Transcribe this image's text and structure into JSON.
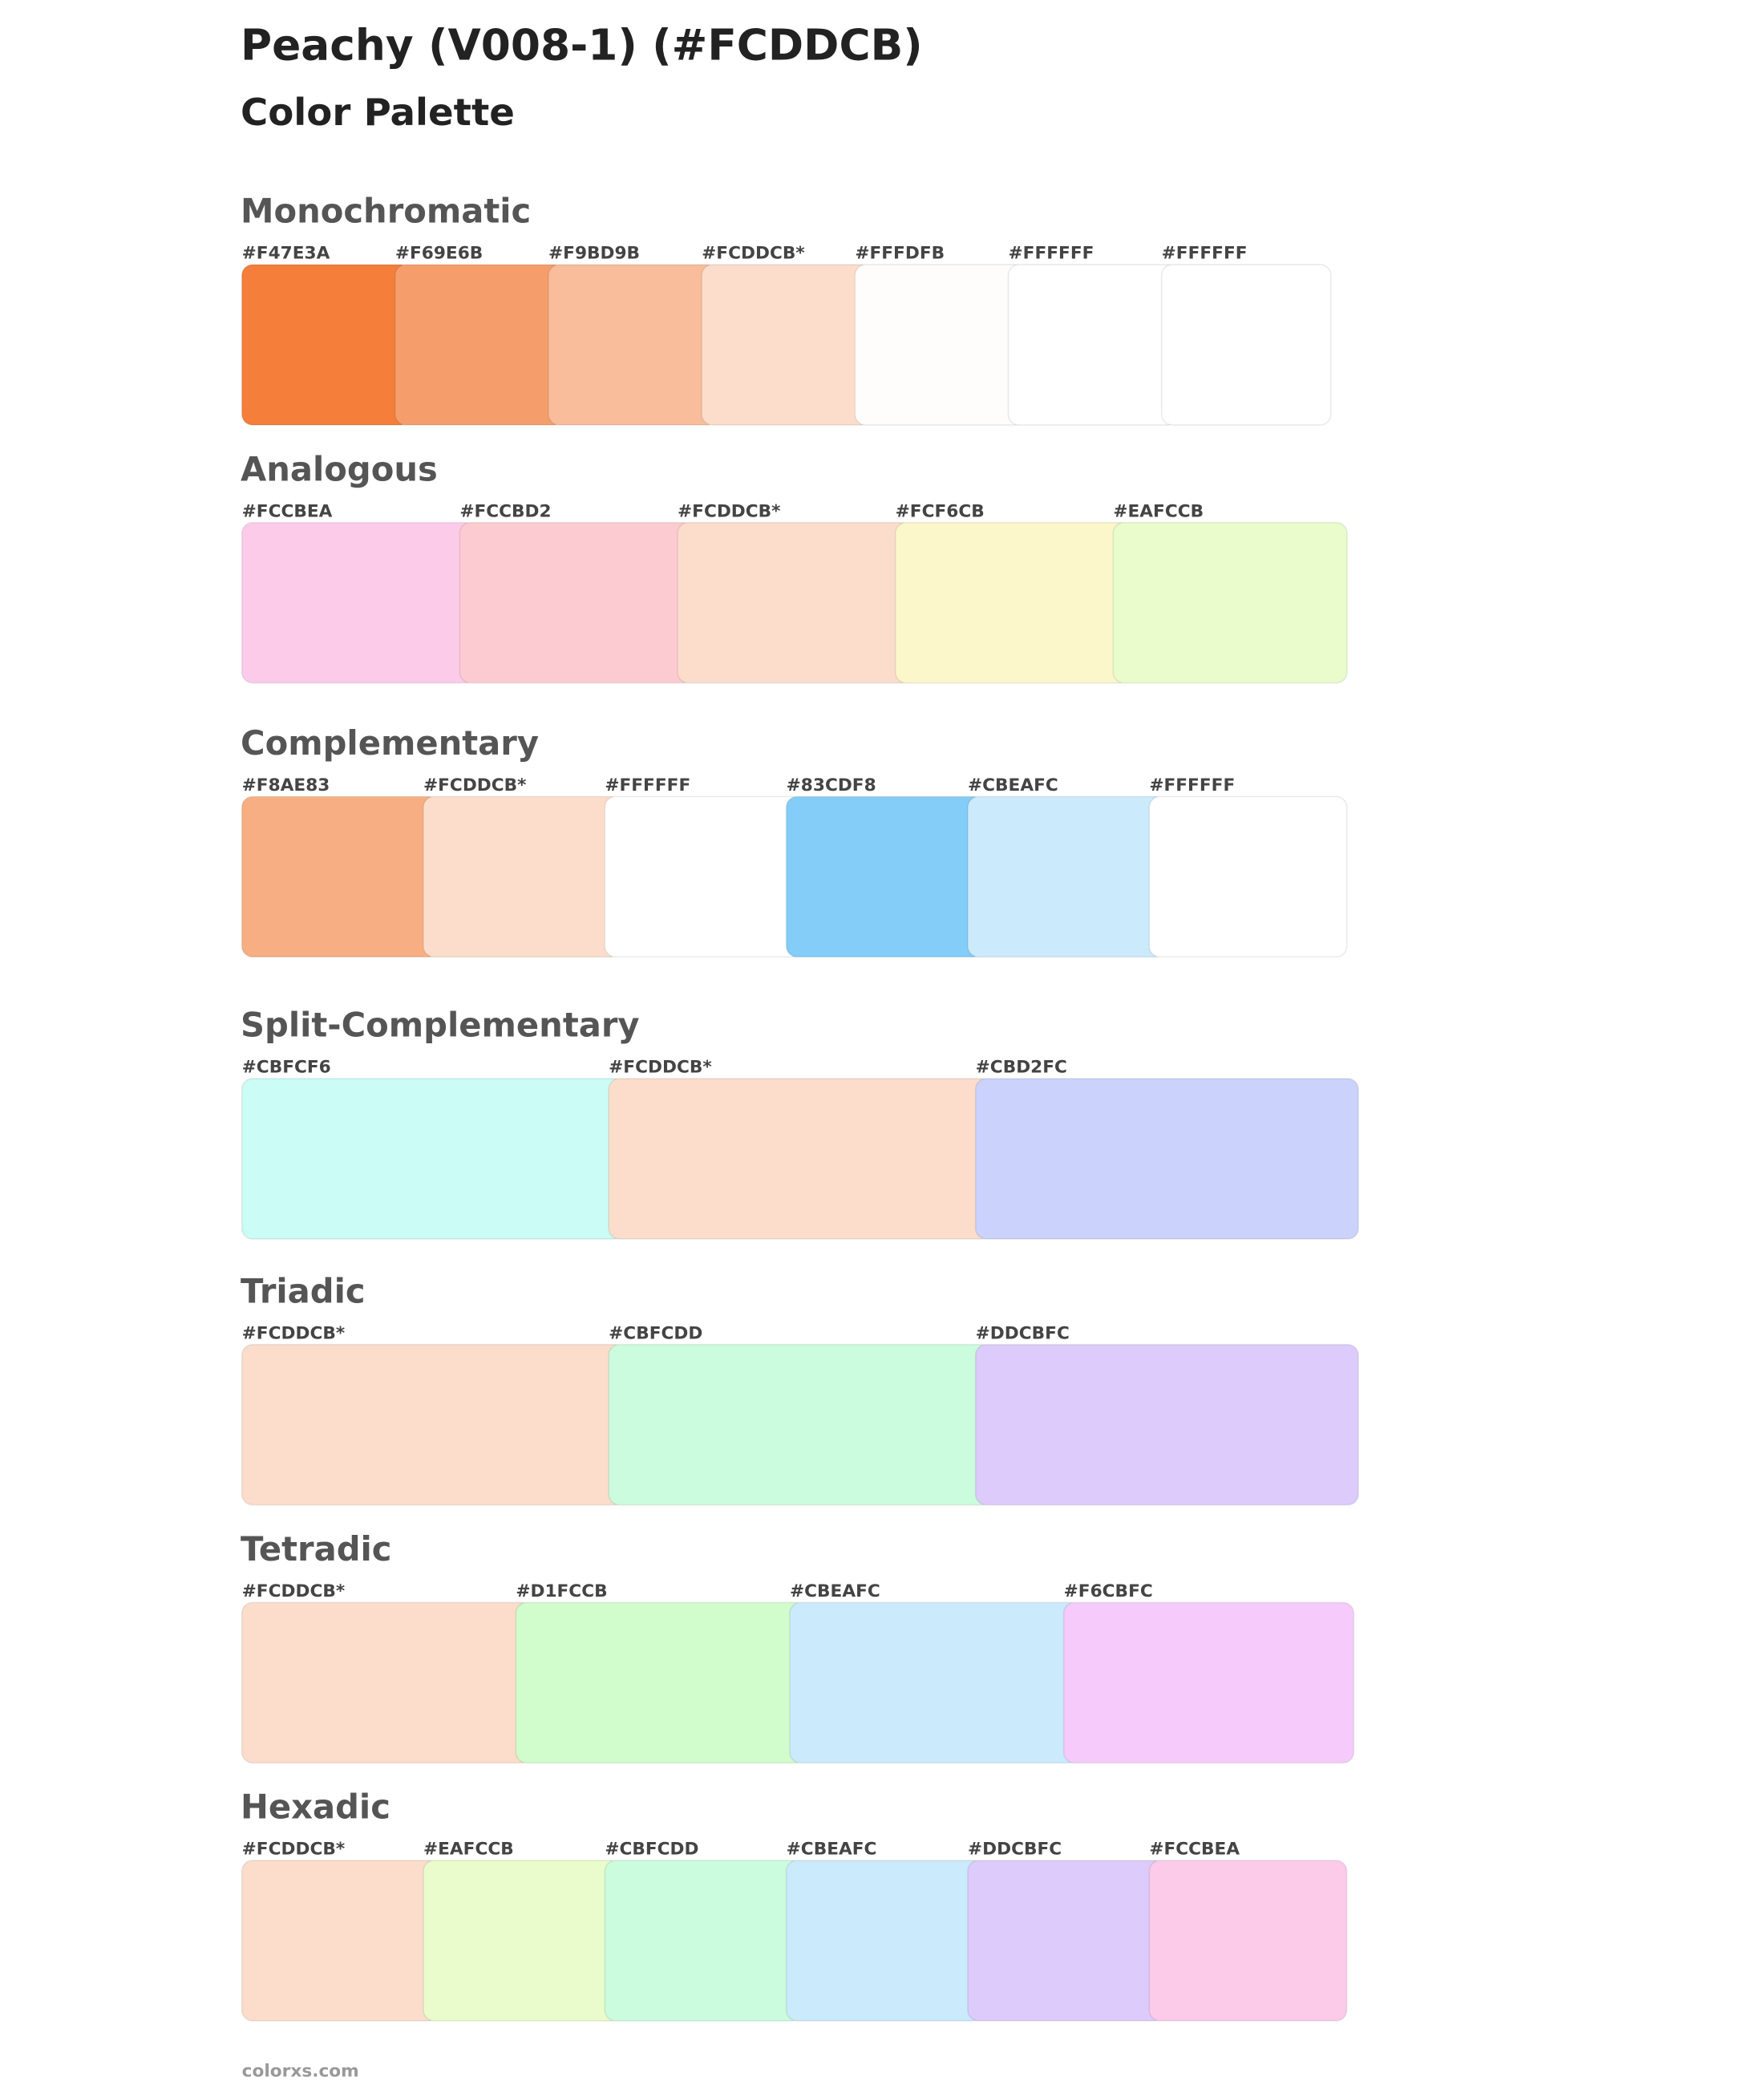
{
  "header": {
    "title": "Peachy (V008-1) (#FCDDCB)",
    "subtitle": "Color Palette"
  },
  "sections": [
    {
      "title": "Monochromatic",
      "swatches": [
        {
          "label": "#F47E3A",
          "color": "#F47E3A"
        },
        {
          "label": "#F69E6B",
          "color": "#F69E6B"
        },
        {
          "label": "#F9BD9B",
          "color": "#F9BD9B"
        },
        {
          "label": "#FCDDCB*",
          "color": "#FCDDCB"
        },
        {
          "label": "#FFFDFB",
          "color": "#FFFDFB"
        },
        {
          "label": "#FFFFFF",
          "color": "#FFFFFF"
        },
        {
          "label": "#FFFFFF",
          "color": "#FFFFFF"
        }
      ]
    },
    {
      "title": "Analogous",
      "swatches": [
        {
          "label": "#FCCBEA",
          "color": "#FCCBEA"
        },
        {
          "label": "#FCCBD2",
          "color": "#FCCBD2"
        },
        {
          "label": "#FCDDCB*",
          "color": "#FCDDCB"
        },
        {
          "label": "#FCF6CB",
          "color": "#FCF6CB"
        },
        {
          "label": "#EAFCCB",
          "color": "#EAFCCB"
        }
      ]
    },
    {
      "title": "Complementary",
      "swatches": [
        {
          "label": "#F8AE83",
          "color": "#F8AE83"
        },
        {
          "label": "#FCDDCB*",
          "color": "#FCDDCB"
        },
        {
          "label": "#FFFFFF",
          "color": "#FFFFFF"
        },
        {
          "label": "#83CDF8",
          "color": "#83CDF8"
        },
        {
          "label": "#CBEAFC",
          "color": "#CBEAFC"
        },
        {
          "label": "#FFFFFF",
          "color": "#FFFFFF"
        }
      ]
    },
    {
      "title": "Split-Complementary",
      "swatches": [
        {
          "label": "#CBFCF6",
          "color": "#CBFCF6"
        },
        {
          "label": "#FCDDCB*",
          "color": "#FCDDCB"
        },
        {
          "label": "#CBD2FC",
          "color": "#CBD2FC"
        }
      ]
    },
    {
      "title": "Triadic",
      "swatches": [
        {
          "label": "#FCDDCB*",
          "color": "#FCDDCB"
        },
        {
          "label": "#CBFCDD",
          "color": "#CBFCDD"
        },
        {
          "label": "#DDCBFC",
          "color": "#DDCBFC"
        }
      ]
    },
    {
      "title": "Tetradic",
      "swatches": [
        {
          "label": "#FCDDCB*",
          "color": "#FCDDCB"
        },
        {
          "label": "#D1FCCB",
          "color": "#D1FCCB"
        },
        {
          "label": "#CBEAFC",
          "color": "#CBEAFC"
        },
        {
          "label": "#F6CBFC",
          "color": "#F6CBFC"
        }
      ]
    },
    {
      "title": "Hexadic",
      "swatches": [
        {
          "label": "#FCDDCB*",
          "color": "#FCDDCB"
        },
        {
          "label": "#EAFCCB",
          "color": "#EAFCCB"
        },
        {
          "label": "#CBFCDD",
          "color": "#CBFCDD"
        },
        {
          "label": "#CBEAFC",
          "color": "#CBEAFC"
        },
        {
          "label": "#DDCBFC",
          "color": "#DDCBFC"
        },
        {
          "label": "#FCCBEA",
          "color": "#FCCBEA"
        }
      ]
    }
  ],
  "footer": "colorxs.com"
}
